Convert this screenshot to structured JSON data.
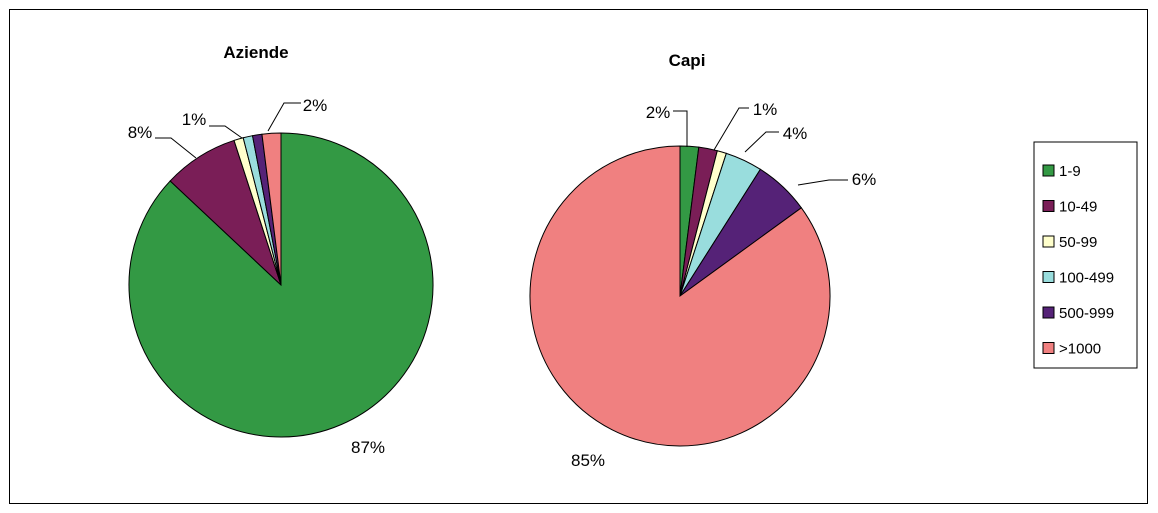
{
  "chart_data": [
    {
      "type": "pie",
      "title": "Aziende",
      "categories": [
        "1-9",
        "10-49",
        "50-99",
        "100-499",
        "500-999",
        ">1000"
      ],
      "values": [
        87,
        8,
        1,
        1,
        1,
        2
      ],
      "labels": [
        "87%",
        "8%",
        "",
        "1%",
        "",
        "2%"
      ],
      "colors": [
        "#339944",
        "#7a1e57",
        "#ffffcc",
        "#99dddd",
        "#552277",
        "#f08080"
      ]
    },
    {
      "type": "pie",
      "title": "Capi",
      "categories": [
        "1-9",
        "10-49",
        "50-99",
        "100-499",
        "500-999",
        ">1000"
      ],
      "values": [
        2,
        2,
        1,
        4,
        6,
        85
      ],
      "labels": [
        "2%",
        "",
        "1%",
        "4%",
        "6%",
        "85%"
      ],
      "colors": [
        "#339944",
        "#7a1e57",
        "#ffffcc",
        "#99dddd",
        "#552277",
        "#f08080"
      ]
    }
  ],
  "legend": {
    "placement": "right",
    "items": [
      "1-9",
      "10-49",
      "50-99",
      "100-499",
      "500-999",
      ">1000"
    ]
  }
}
